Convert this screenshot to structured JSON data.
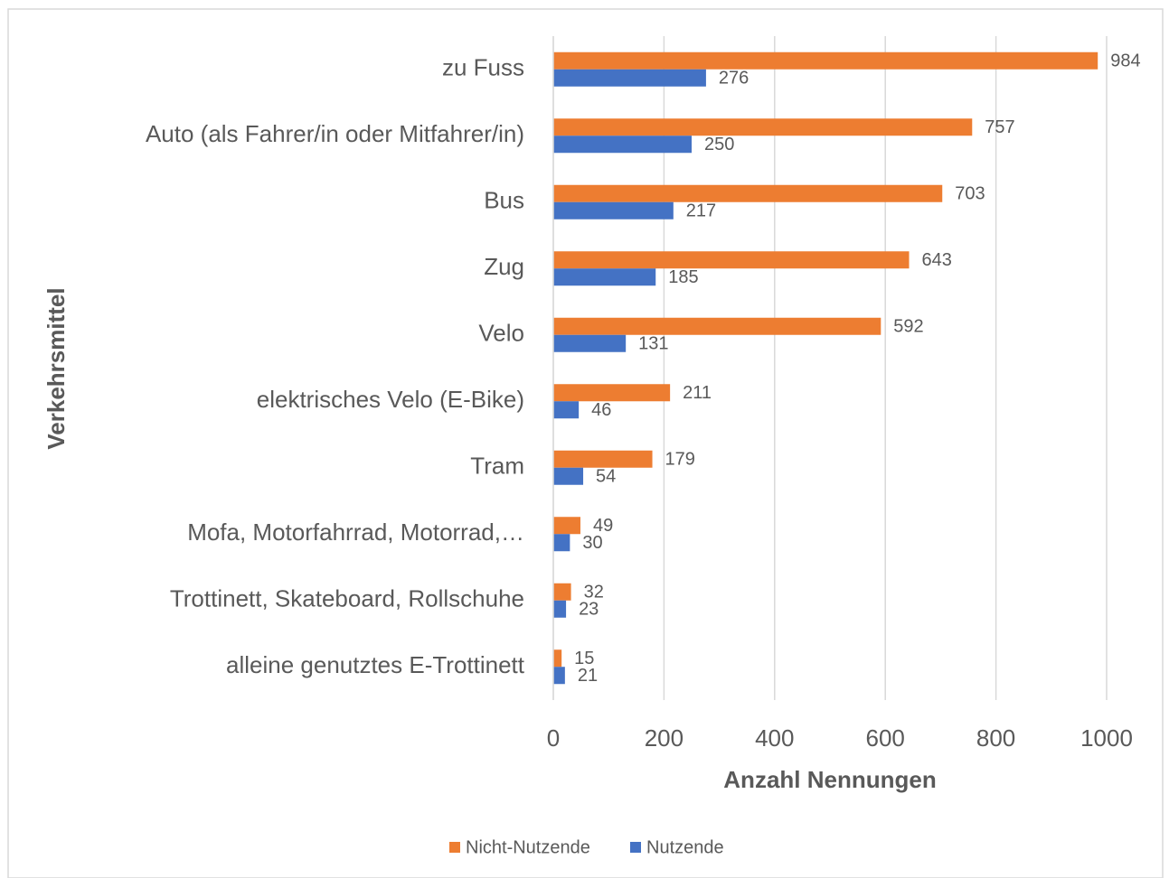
{
  "chart_data": {
    "type": "bar",
    "orientation": "horizontal",
    "xlabel": "Anzahl Nennungen",
    "ylabel": "Verkehrsmittel",
    "categories": [
      "zu Fuss",
      "Auto (als Fahrer/in oder Mitfahrer/in)",
      "Bus",
      "Zug",
      "Velo",
      "elektrisches Velo (E-Bike)",
      "Tram",
      "Mofa, Motorfahrrad, Motorrad,…",
      "Trottinett, Skateboard, Rollschuhe",
      "alleine genutztes E-Trottinett"
    ],
    "series": [
      {
        "name": "Nicht-Nutzende",
        "color": "#ed7d31",
        "values": [
          984,
          757,
          703,
          643,
          592,
          211,
          179,
          49,
          32,
          15
        ]
      },
      {
        "name": "Nutzende",
        "color": "#4472c4",
        "values": [
          276,
          250,
          217,
          185,
          131,
          46,
          54,
          30,
          23,
          21
        ]
      }
    ],
    "xlim": [
      0,
      1000
    ],
    "xticks": [
      0,
      200,
      400,
      600,
      800,
      1000
    ],
    "grid": true,
    "legend": "bottom"
  }
}
